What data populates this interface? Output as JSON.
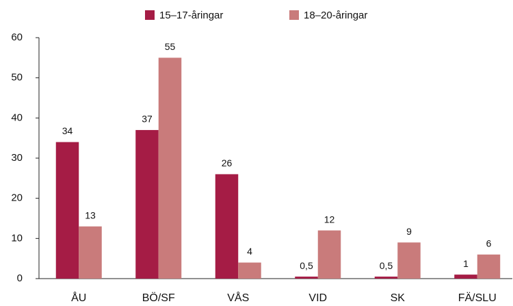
{
  "chart_data": {
    "type": "bar",
    "categories": [
      "ÅU",
      "BÖ/SF",
      "VÅS",
      "VID",
      "SK",
      "FÄ/SLU"
    ],
    "series": [
      {
        "name": "15–17-åringar",
        "color": "#a51c45",
        "values": [
          34,
          37,
          26,
          0.5,
          0.5,
          1
        ],
        "value_labels": [
          "34",
          "37",
          "26",
          "0,5",
          "0,5",
          "1"
        ]
      },
      {
        "name": "18–20-åringar",
        "color": "#c97b7b",
        "values": [
          13,
          55,
          4,
          12,
          9,
          6
        ],
        "value_labels": [
          "13",
          "55",
          "4",
          "12",
          "9",
          "6"
        ]
      }
    ],
    "ylim": [
      0,
      60
    ],
    "yticks": [
      0,
      10,
      20,
      30,
      40,
      50,
      60
    ],
    "grid": false,
    "legend": "top"
  }
}
